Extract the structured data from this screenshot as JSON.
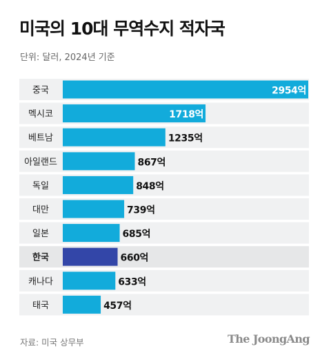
{
  "header": {
    "title": "미국의 10대 무역수지 적자국",
    "subtitle": "단위: 달러, 2024년 기준"
  },
  "footer": {
    "source": "자료: 미국 상무부",
    "brand": "The JoongAng"
  },
  "colors": {
    "bar": "#12ABDB",
    "highlight_bar": "#3346A8",
    "highlight_row_bg": "#E6E7E8",
    "row_bg": "#F0F1F2",
    "value_text": "#111111",
    "value_text_inside": "#ffffff"
  },
  "chart_data": {
    "type": "bar",
    "orientation": "horizontal",
    "unit": "억",
    "categories": [
      "중국",
      "멕시코",
      "베트남",
      "아일랜드",
      "독일",
      "대만",
      "일본",
      "한국",
      "캐나다",
      "태국"
    ],
    "values": [
      2954,
      1718,
      1235,
      867,
      848,
      739,
      685,
      660,
      633,
      457
    ],
    "value_labels": [
      "2954억",
      "1718억",
      "1235억",
      "867억",
      "848억",
      "739억",
      "685억",
      "660억",
      "633억",
      "457억"
    ],
    "highlight": "한국",
    "xlim": [
      0,
      2954
    ]
  }
}
